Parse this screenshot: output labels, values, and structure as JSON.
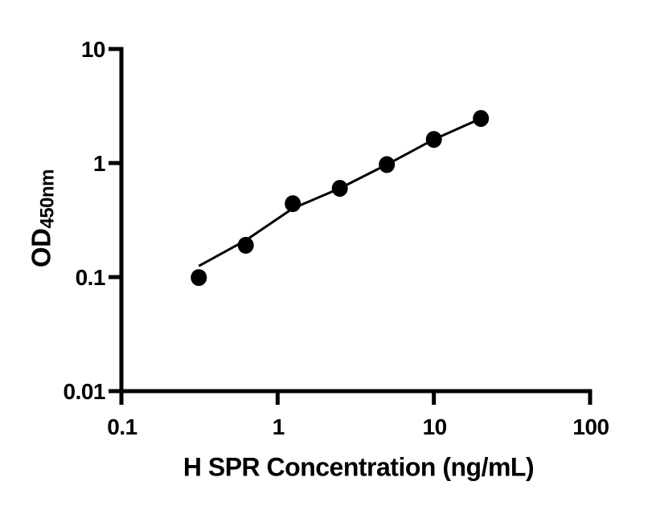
{
  "page": {
    "background": "#ffffff"
  },
  "chart_data": {
    "type": "scatter",
    "title": "",
    "xlabel": "H SPR Concentration (ng/mL)",
    "ylabel_main": "OD",
    "ylabel_sub": "450nm",
    "x_scale": "log",
    "y_scale": "log",
    "xlim": [
      0.1,
      100
    ],
    "ylim": [
      0.01,
      10
    ],
    "x_ticks": [
      0.1,
      1,
      10,
      100
    ],
    "x_tick_labels": [
      "0.1",
      "1",
      "10",
      "100"
    ],
    "y_ticks": [
      0.01,
      0.1,
      1,
      10
    ],
    "y_tick_labels": [
      "0.01",
      "0.1",
      "1",
      "10"
    ],
    "grid": false,
    "legend": false,
    "axis_color": "#000000",
    "marker_color": "#000000",
    "line_color": "#000000",
    "series": [
      {
        "name": "standard-points",
        "type": "scatter",
        "x": [
          0.313,
          0.625,
          1.25,
          2.5,
          5,
          10,
          20
        ],
        "y": [
          0.099,
          0.19,
          0.44,
          0.6,
          0.97,
          1.61,
          2.46
        ]
      },
      {
        "name": "fit-line",
        "type": "line",
        "x": [
          0.313,
          0.625,
          1.25,
          2.5,
          5,
          10,
          20
        ],
        "y": [
          0.125,
          0.21,
          0.4,
          0.6,
          0.97,
          1.61,
          2.46
        ]
      }
    ]
  }
}
